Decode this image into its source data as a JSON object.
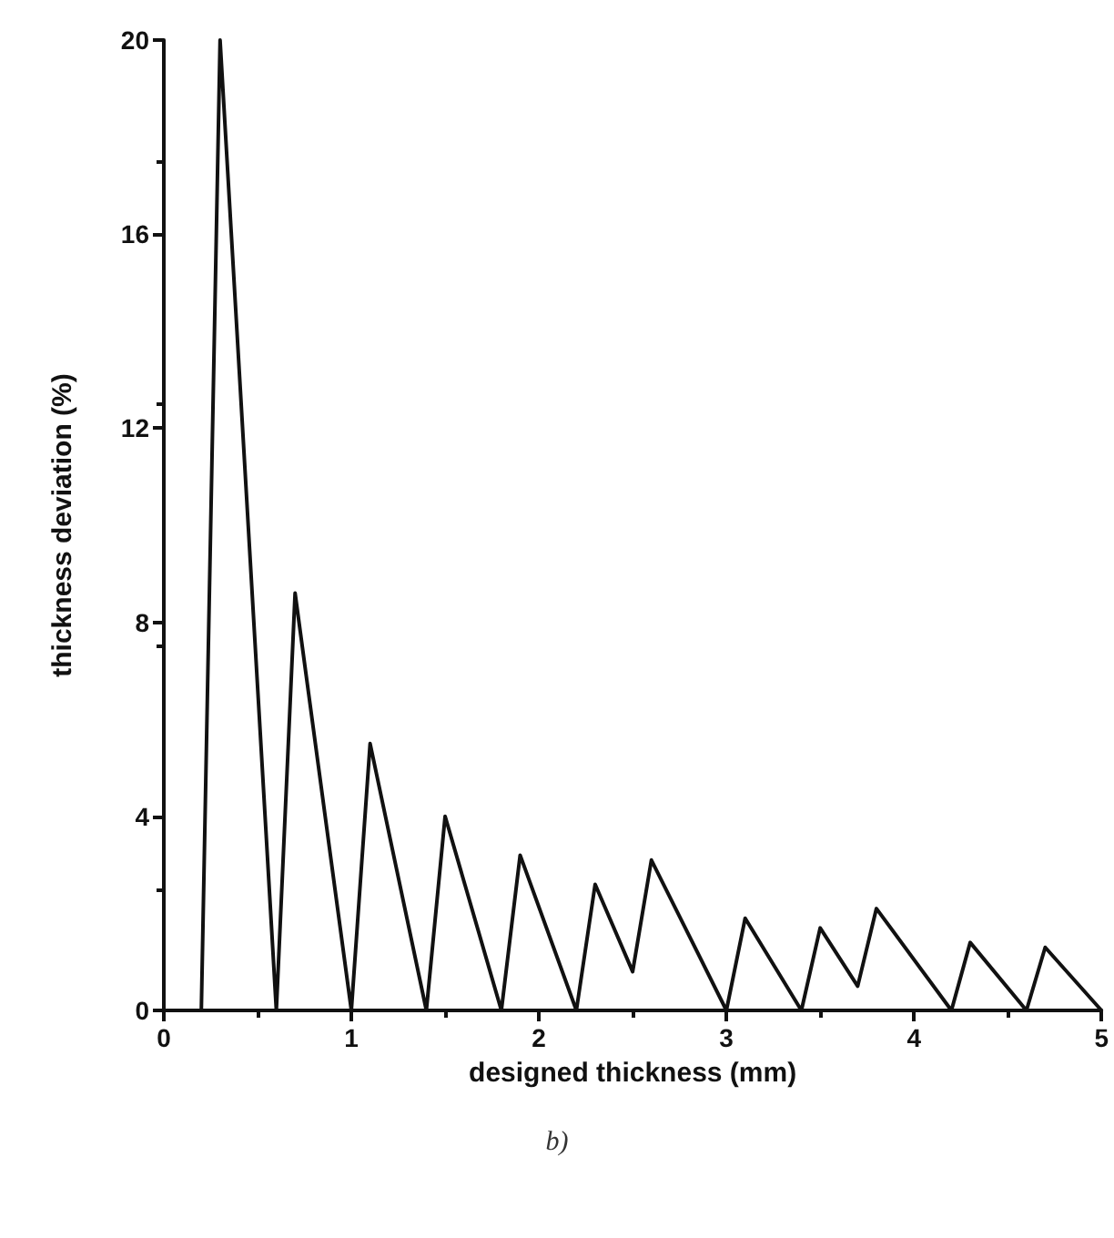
{
  "chart_data": {
    "type": "line",
    "xlabel": "designed thickness (mm)",
    "ylabel": "thickness deviation (%)",
    "annotations": [
      "b)"
    ],
    "x": [
      0.2,
      0.3,
      0.6,
      0.7,
      1.0,
      1.1,
      1.4,
      1.5,
      1.8,
      1.9,
      2.2,
      2.3,
      2.5,
      2.6,
      3.0,
      3.1,
      3.4,
      3.5,
      3.7,
      3.8,
      4.2,
      4.3,
      4.6,
      4.7,
      5.0
    ],
    "series": [
      {
        "color": "#111111",
        "values": [
          0,
          20,
          0,
          8.6,
          0,
          5.5,
          0,
          4,
          0,
          3.2,
          0,
          2.6,
          0.8,
          3.1,
          0,
          1.9,
          0,
          1.7,
          0.5,
          2.1,
          0,
          1.4,
          0,
          1.3,
          0
        ]
      }
    ],
    "xlim": [
      0,
      5
    ],
    "xticks": [
      0,
      1,
      2,
      3,
      4,
      5
    ],
    "ylim": [
      0,
      20
    ],
    "yticks": [
      0,
      4,
      8,
      12,
      16,
      20
    ],
    "grid": false,
    "marker": "none",
    "line_style": "solid"
  }
}
